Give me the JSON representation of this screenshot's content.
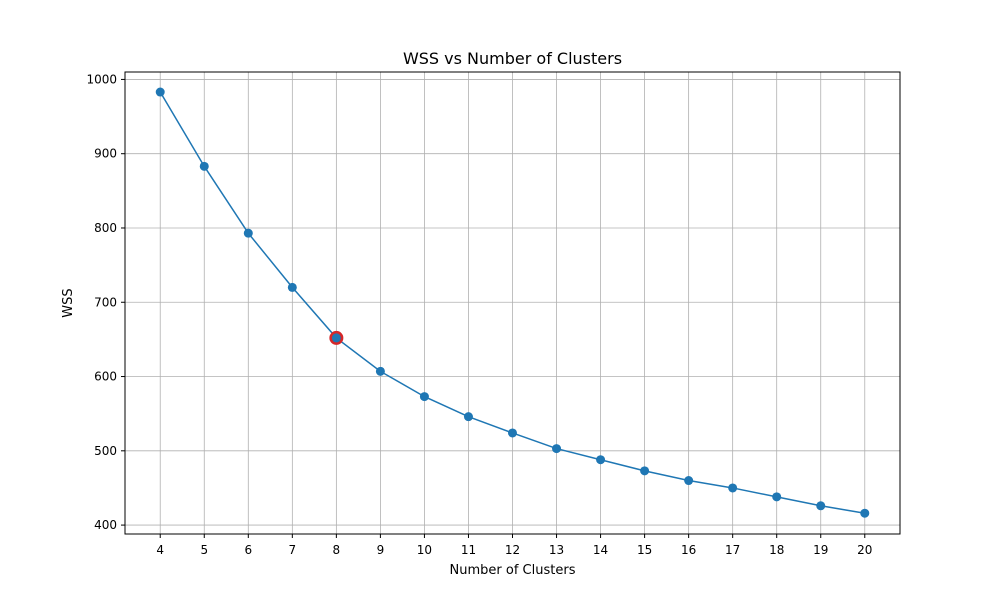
{
  "chart_data": {
    "type": "line",
    "title": "WSS vs Number of Clusters",
    "xlabel": "Number of Clusters",
    "ylabel": "WSS",
    "x": [
      4,
      5,
      6,
      7,
      8,
      9,
      10,
      11,
      12,
      13,
      14,
      15,
      16,
      17,
      18,
      19,
      20
    ],
    "y": [
      983,
      883,
      793,
      720,
      652,
      607,
      573,
      546,
      524,
      503,
      488,
      473,
      460,
      450,
      438,
      426,
      416
    ],
    "xticks": [
      4,
      5,
      6,
      7,
      8,
      9,
      10,
      11,
      12,
      13,
      14,
      15,
      16,
      17,
      18,
      19,
      20
    ],
    "yticks": [
      400,
      500,
      600,
      700,
      800,
      900,
      1000
    ],
    "xlim": [
      3.2,
      20.8
    ],
    "ylim": [
      388,
      1010
    ],
    "grid": true,
    "highlight": {
      "x": 8,
      "y": 652
    },
    "colors": {
      "line": "#1f77b4",
      "marker": "#1f77b4",
      "highlight": "#d62728",
      "grid": "#b0b0b0",
      "axes": "#000000"
    }
  }
}
